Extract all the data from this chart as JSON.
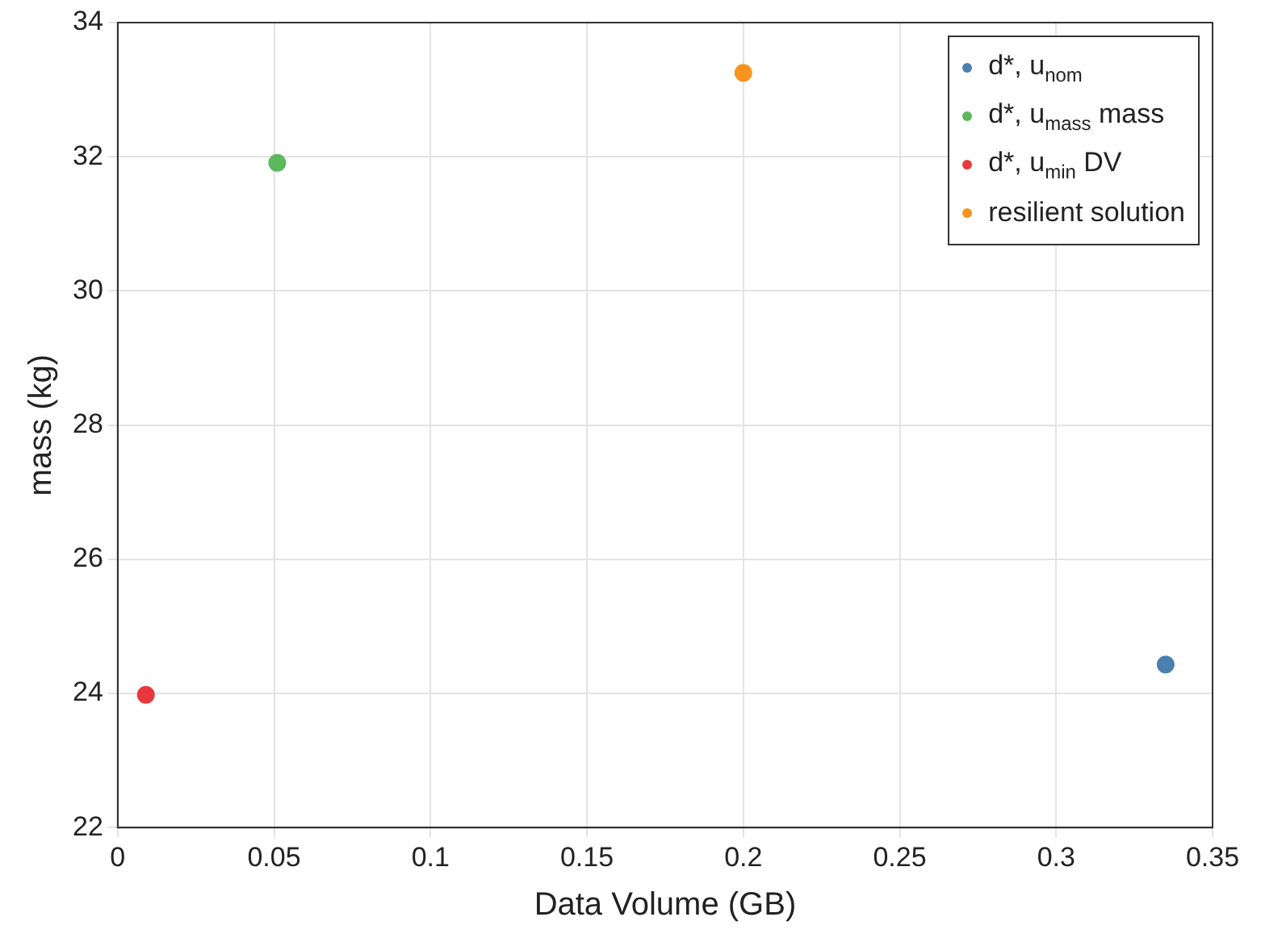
{
  "chart_data": {
    "type": "scatter",
    "xlabel": "Data Volume (GB)",
    "ylabel": "mass (kg)",
    "xlim": [
      0,
      0.35
    ],
    "xticks": [
      0,
      0.05,
      0.1,
      0.15,
      0.2,
      0.25,
      0.3,
      0.35
    ],
    "ylim": [
      22,
      34
    ],
    "yticks": [
      22,
      24,
      26,
      28,
      30,
      32,
      34
    ],
    "grid": true,
    "legend": "top right",
    "marker": "circle",
    "series": [
      {
        "name": "d*, u$_{nom}$",
        "color": "#4a7fb0",
        "x": [
          0.335
        ],
        "values": [
          24.43
        ]
      },
      {
        "name": "d*, u$_{mass}$ mass",
        "color": "#5cb85c",
        "x": [
          0.051
        ],
        "values": [
          31.91
        ]
      },
      {
        "name": "d*, u$_{min}$ DV",
        "color": "#e8383d",
        "x": [
          0.009
        ],
        "values": [
          23.98
        ]
      },
      {
        "name": "resilient solution",
        "color": "#f7941d",
        "x": [
          0.2
        ],
        "values": [
          33.25
        ]
      }
    ]
  }
}
